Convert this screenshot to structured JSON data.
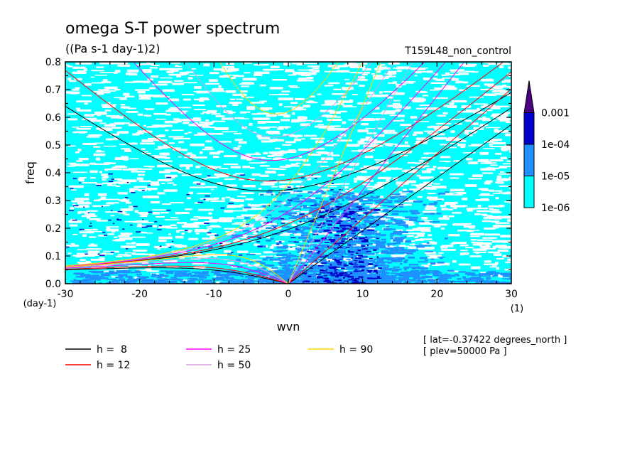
{
  "chart_data": {
    "type": "heatmap",
    "title": "omega S-T power spectrum",
    "units": "((Pa s-1 day-1)2)",
    "run_label": "T159L48_non_control",
    "xlabel": "wvn",
    "ylabel": "freq",
    "x_unit": "(1)",
    "y_unit": "(day-1)",
    "xlim": [
      -30,
      30
    ],
    "ylim": [
      0,
      0.8
    ],
    "x_ticks": [
      -30,
      -20,
      -10,
      0,
      10,
      20,
      30
    ],
    "x_tick_labels": [
      "-30",
      "-20",
      "-10",
      "0",
      "10",
      "20",
      "30"
    ],
    "y_ticks": [
      0,
      0.1,
      0.2,
      0.3,
      0.4,
      0.5,
      0.6,
      0.7,
      0.8
    ],
    "y_tick_labels": [
      "0.0",
      "0.1",
      "0.2",
      "0.3",
      "0.4",
      "0.5",
      "0.6",
      "0.7",
      "0.8"
    ],
    "colorbar": {
      "levels": [
        1e-06,
        1e-05,
        0.0001,
        0.001
      ],
      "labels": [
        "1e-06",
        "1e-05",
        "1e-04",
        "0.001"
      ],
      "colors": [
        "#00ffff",
        "#1e90ff",
        "#0000cd",
        "#4b0082"
      ],
      "extend": "max"
    },
    "dispersion_curves": [
      {
        "h": 8,
        "label": "h =  8",
        "color": "#000000"
      },
      {
        "h": 12,
        "label": "h = 12",
        "color": "#ff0000"
      },
      {
        "h": 25,
        "label": "h = 25",
        "color": "#ff00ff"
      },
      {
        "h": 50,
        "label": "h = 50",
        "color": "#dda0dd"
      },
      {
        "h": 90,
        "label": "h = 90",
        "color": "#ffd700"
      }
    ],
    "annotations": [
      "[ lat=-0.37422 degrees_north ]",
      "[ plev=50000 Pa ]"
    ]
  }
}
